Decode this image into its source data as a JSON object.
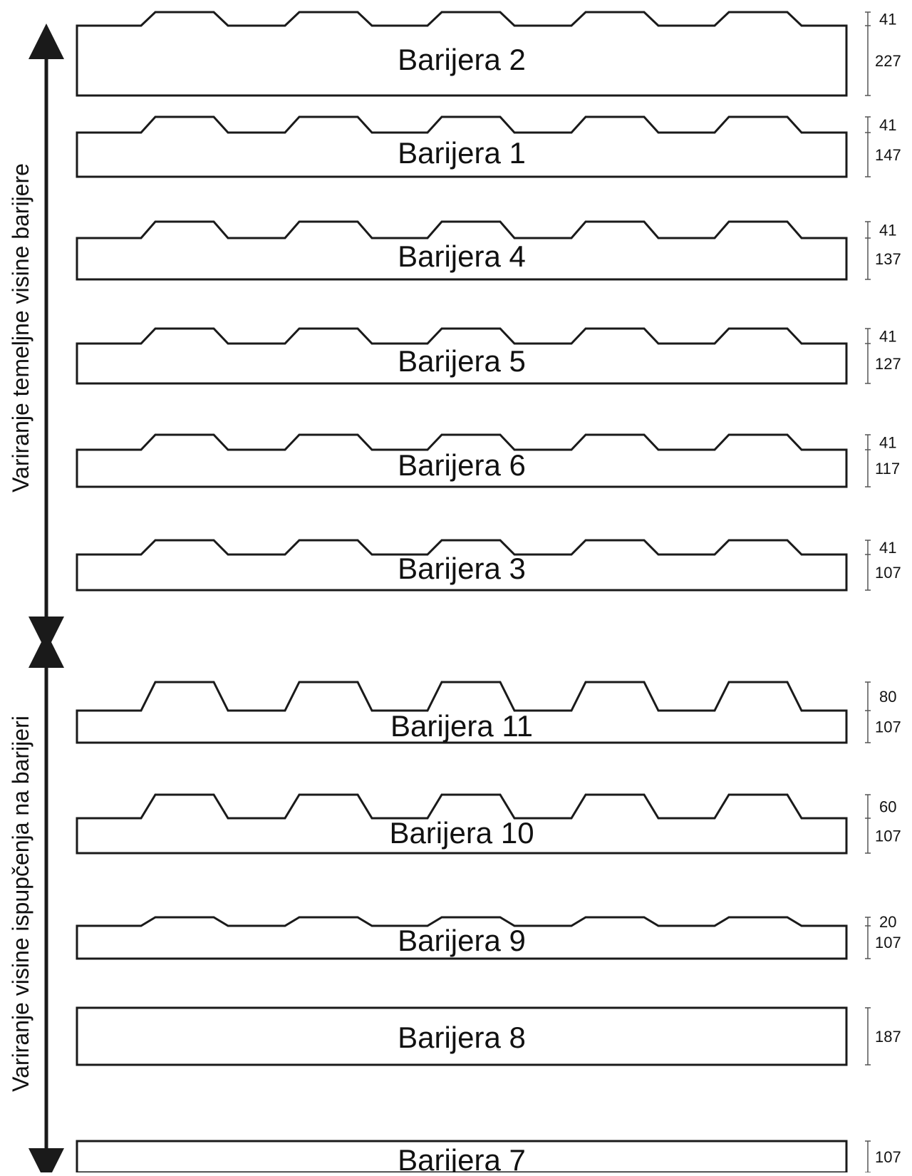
{
  "diagram": {
    "colors": {
      "stroke": "#1a1a1a",
      "background": "#ffffff",
      "dimension": "#555555"
    },
    "axis_groups": [
      {
        "label": "Variranje temeljne visine barijere"
      },
      {
        "label": "Variranje visine ispupčenja na barijeri"
      }
    ],
    "barriers": [
      {
        "label": "Barijera 2",
        "base_height": "227",
        "bump_height": "41",
        "bumps": 5
      },
      {
        "label": "Barijera 1",
        "base_height": "147",
        "bump_height": "41",
        "bumps": 5
      },
      {
        "label": "Barijera 4",
        "base_height": "137",
        "bump_height": "41",
        "bumps": 5
      },
      {
        "label": "Barijera 5",
        "base_height": "127",
        "bump_height": "41",
        "bumps": 5
      },
      {
        "label": "Barijera 6",
        "base_height": "117",
        "bump_height": "41",
        "bumps": 5
      },
      {
        "label": "Barijera 3",
        "base_height": "107",
        "bump_height": "41",
        "bumps": 5
      },
      {
        "label": "Barijera 11",
        "base_height": "107",
        "bump_height": "80",
        "bumps": 5
      },
      {
        "label": "Barijera 10",
        "base_height": "107",
        "bump_height": "60",
        "bumps": 5
      },
      {
        "label": "Barijera 9",
        "base_height": "107",
        "bump_height": "20",
        "bumps": 5
      },
      {
        "label": "Barijera 8",
        "base_height": "187",
        "bump_height": "",
        "bumps": 0
      },
      {
        "label": "Barijera 7",
        "base_height": "107",
        "bump_height": "",
        "bumps": 0
      }
    ]
  }
}
